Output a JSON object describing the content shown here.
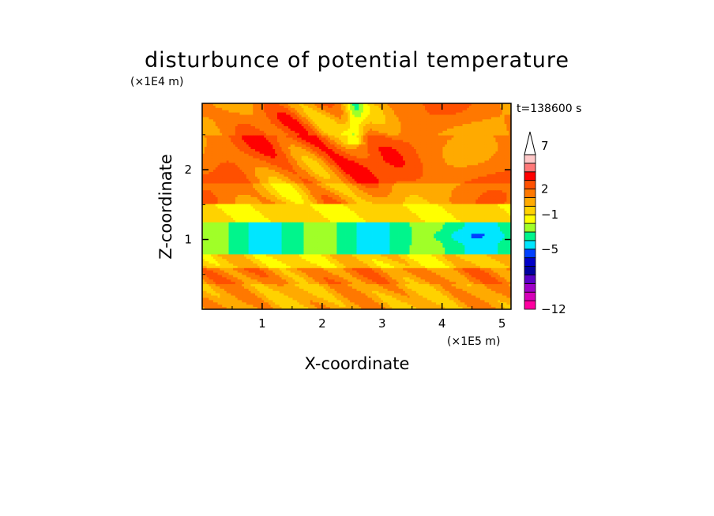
{
  "chart_data": {
    "type": "heatmap",
    "title": "disturbunce of potential temperature",
    "xlabel": "X-coordinate",
    "ylabel": "Z-coordinate",
    "x_unit": "(×1E5 m)",
    "y_unit": "(×1E4 m)",
    "time_label": "t=138600 s",
    "x_range": [
      0,
      5.15
    ],
    "y_range": [
      0,
      2.95
    ],
    "x_ticks": [
      1,
      2,
      3,
      4,
      5
    ],
    "y_ticks": [
      1,
      2
    ],
    "colorbar": {
      "levels": [
        -12,
        -11,
        -10,
        -9,
        -8,
        -7,
        -6,
        -5,
        -4,
        -3,
        -2,
        -1,
        0,
        1,
        2,
        3,
        4,
        5,
        6,
        7,
        8,
        9,
        10
      ],
      "colors": [
        "#ff00a0",
        "#d700b9",
        "#a000c8",
        "#5a00c8",
        "#0000a0",
        "#0000c8",
        "#0040ff",
        "#00e6ff",
        "#00f58c",
        "#a0ff28",
        "#ffff00",
        "#ffd200",
        "#ffaa00",
        "#ff7800",
        "#ff5000",
        "#ff0000",
        "#ff7878",
        "#ffc8c8"
      ],
      "labels": [
        {
          "value": -12,
          "text": "−12"
        },
        {
          "value": -5,
          "text": "−5"
        },
        {
          "value": -1,
          "text": "−1"
        },
        {
          "value": 2,
          "text": "2"
        },
        {
          "value": 7,
          "text": "7"
        }
      ],
      "extend_max": true
    },
    "bands": [
      {
        "z": [
          0,
          0.35
        ],
        "value": 0.5
      },
      {
        "z": [
          0.35,
          0.6
        ],
        "value": 1.2
      },
      {
        "z": [
          0.6,
          0.8
        ],
        "value": -0.5
      },
      {
        "z": [
          0.8,
          1.25
        ],
        "value": -3.5
      },
      {
        "z": [
          1.25,
          1.5
        ],
        "value": -0.8
      },
      {
        "z": [
          1.5,
          1.8
        ],
        "value": 0.8
      },
      {
        "z": [
          1.8,
          2.5
        ],
        "value": 1.8
      },
      {
        "z": [
          2.5,
          2.95
        ],
        "value": 1.2
      }
    ]
  }
}
